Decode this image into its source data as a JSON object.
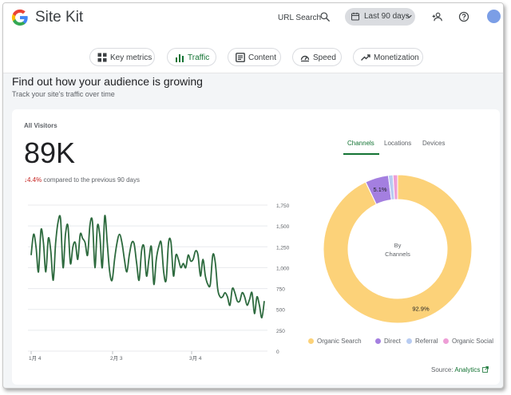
{
  "header": {
    "app_name": "Site Kit",
    "url_search_label": "URL Search",
    "date_range_label": "Last 90 days",
    "icons": [
      "google-logo-icon",
      "search-icon",
      "calendar-icon",
      "chevron-down-icon",
      "add-user-icon",
      "help-icon",
      "avatar"
    ]
  },
  "nav": {
    "chips": [
      {
        "label": "Key metrics",
        "icon": "grid-icon",
        "active": false
      },
      {
        "label": "Traffic",
        "icon": "bar-chart-icon",
        "active": true
      },
      {
        "label": "Content",
        "icon": "content-icon",
        "active": false
      },
      {
        "label": "Speed",
        "icon": "speedometer-icon",
        "active": false
      },
      {
        "label": "Monetization",
        "icon": "trending-up-icon",
        "active": false
      }
    ]
  },
  "section": {
    "title": "Find out how your audience is growing",
    "subtitle": "Track your site's traffic over time"
  },
  "card": {
    "title": "All Visitors",
    "total": "89K",
    "change_value": "4.4%",
    "change_text": "compared to the previous 90 days",
    "tabs": [
      "Channels",
      "Locations",
      "Devices"
    ],
    "active_tab": "Channels",
    "donut_center_line1": "By",
    "donut_center_line2": "Channels",
    "source_label": "Source:",
    "source_link": "Analytics"
  },
  "colors": {
    "accent_green": "#137333",
    "line_green": "#2d6a3e",
    "organic_search": "#fcd279",
    "direct": "#a47fe0",
    "referral": "#b8ccf2",
    "organic_social": "#ee9ed6"
  },
  "chart_data": [
    {
      "type": "line",
      "title": "",
      "xlabel": "",
      "ylabel": "",
      "x_tick_labels": [
        "1月 4",
        "2月 3",
        "3月 4"
      ],
      "y_ticks": [
        0,
        250,
        500,
        750,
        1000,
        1250,
        1500,
        1750
      ],
      "ylim": [
        0,
        1750
      ],
      "grid": true,
      "series": [
        {
          "values": [
            1150,
            1400,
            1250,
            950,
            1450,
            1300,
            950,
            1350,
            1200,
            850,
            1300,
            1550,
            1580,
            1000,
            1400,
            1500,
            1050,
            1250,
            1300,
            1100,
            1400,
            1350,
            1300,
            1150,
            1520,
            1550,
            1000,
            1500,
            1380,
            1000,
            1620,
            1300,
            950,
            850,
            1100,
            1300,
            1400,
            1300,
            1100,
            950,
            1150,
            1300,
            1280,
            1050,
            850,
            1200,
            1250,
            900,
            1100,
            1250,
            800,
            1100,
            1250,
            1300,
            950,
            850,
            1300,
            1300,
            900,
            1150,
            1100,
            1000,
            1050,
            1000,
            1150,
            1080,
            1100,
            1200,
            1150,
            900,
            1100,
            900,
            800,
            800,
            1150,
            1070,
            750,
            650,
            650,
            700,
            650,
            550,
            750,
            700,
            600,
            600,
            700,
            650,
            550,
            620,
            700,
            450,
            650,
            550,
            400,
            600
          ]
        }
      ]
    },
    {
      "type": "pie",
      "title": "",
      "legend_position": "bottom",
      "categories": [
        "Organic Search",
        "Direct",
        "Referral",
        "Organic Social"
      ],
      "values": [
        92.9,
        5.1,
        1.0,
        1.0
      ],
      "data_labels": [
        "92.9%",
        "5.1%",
        "",
        ""
      ]
    }
  ]
}
